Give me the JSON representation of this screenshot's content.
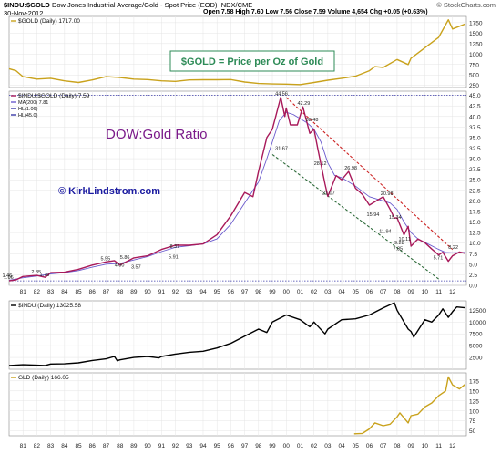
{
  "header": {
    "symbol": "$INDU:$GOLD",
    "description": "Dow Jones Industrial Average/Gold - Spot Price (EOD) INDX/CME",
    "watermark": "© StockCharts.com",
    "date": "30-Nov-2012",
    "ohlc": "Open 7.58  High 7.60  Low 7.56  Close 7.59  Volume 4,654  Chg +0.05 (+0.63%)"
  },
  "chart_data": [
    {
      "type": "line",
      "panel": "gold",
      "legend": "$GOLD (Daily) 1717.00",
      "annotation": "$GOLD = Price per Oz of Gold",
      "series": [
        {
          "name": "$GOLD (Daily) 1717.00",
          "color": "#c9a21c",
          "x": [
            1980.0,
            1980.5,
            1981.0,
            1982.0,
            1983.0,
            1984.0,
            1985.0,
            1986.0,
            1987.0,
            1988.0,
            1989.0,
            1990.0,
            1991.0,
            1992.0,
            1993.0,
            1994.0,
            1995.0,
            1996.0,
            1997.0,
            1998.0,
            1999.0,
            2000.0,
            2001.0,
            2002.0,
            2003.0,
            2004.0,
            2005.0,
            2006.0,
            2006.4,
            2007.0,
            2008.0,
            2008.8,
            2009.0,
            2010.0,
            2011.0,
            2011.7,
            2012.0,
            2012.9
          ],
          "y": [
            650,
            600,
            460,
            400,
            420,
            360,
            320,
            380,
            460,
            440,
            400,
            390,
            360,
            345,
            380,
            385,
            385,
            390,
            330,
            295,
            285,
            280,
            270,
            320,
            375,
            420,
            470,
            600,
            700,
            680,
            870,
            750,
            900,
            1150,
            1400,
            1820,
            1600,
            1717
          ]
        }
      ],
      "y_ticks": [
        250,
        500,
        750,
        1000,
        1250,
        1500,
        1750
      ],
      "ylim": [
        200,
        1900
      ]
    },
    {
      "type": "line",
      "panel": "ratio",
      "legend": [
        "$INDU:$GOLD (Daily) 7.59",
        "MA(200) 7.81",
        "HL(1.06)",
        "HL(45.0)"
      ],
      "title": "DOW:Gold Ratio",
      "credit": "© KirkLindstrom.com",
      "series": [
        {
          "name": "$INDU:$GOLD (Daily) 7.59",
          "color": "#a8195a",
          "x": [
            1980.0,
            1980.5,
            1981.0,
            1982.0,
            1982.6,
            1983.0,
            1984.0,
            1985.0,
            1986.0,
            1987.0,
            1987.6,
            1988.0,
            1989.0,
            1990.0,
            1991.0,
            1992.0,
            1993.0,
            1994.0,
            1995.0,
            1996.0,
            1997.0,
            1997.6,
            1998.0,
            1998.6,
            1999.0,
            1999.6,
            1999.9,
            2000.0,
            2000.3,
            2000.8,
            2001.2,
            2001.7,
            2002.0,
            2002.3,
            2002.8,
            2003.0,
            2003.6,
            2004.0,
            2004.5,
            2005.0,
            2005.5,
            2006.0,
            2006.5,
            2007.0,
            2007.5,
            2007.8,
            2008.0,
            2008.5,
            2008.8,
            2009.0,
            2009.5,
            2010.0,
            2010.5,
            2011.0,
            2011.3,
            2011.7,
            2012.0,
            2012.5,
            2012.9
          ],
          "y": [
            1.06,
            1.3,
            2.1,
            2.35,
            1.9,
            3.0,
            3.1,
            3.8,
            4.8,
            5.55,
            5.86,
            4.8,
            6.5,
            7.0,
            8.5,
            9.5,
            9.5,
            9.8,
            12.0,
            16.5,
            22.0,
            21.0,
            27.0,
            35.0,
            37.0,
            44.56,
            40.0,
            42.0,
            38.0,
            38.0,
            42.29,
            36.0,
            37.0,
            32.0,
            24.0,
            21.07,
            26.0,
            25.0,
            26.98,
            23.0,
            21.5,
            19.0,
            20.0,
            20.98,
            18.0,
            15.94,
            16.0,
            11.94,
            14.0,
            9.28,
            11.0,
            10.11,
            8.6,
            7.2,
            7.85,
            5.71,
            7.0,
            7.9,
            7.59
          ]
        },
        {
          "name": "MA(200) 7.81",
          "color": "#6a5acd",
          "x": [
            1980.0,
            1981.0,
            1982.0,
            1983.0,
            1984.0,
            1985.0,
            1986.0,
            1987.0,
            1988.0,
            1989.0,
            1990.0,
            1991.0,
            1992.0,
            1993.0,
            1994.0,
            1995.0,
            1996.0,
            1997.0,
            1998.0,
            1998.6,
            1999.0,
            1999.5,
            2000.0,
            2000.5,
            2001.0,
            2001.5,
            2002.0,
            2002.5,
            2003.0,
            2003.5,
            2004.0,
            2005.0,
            2006.0,
            2007.0,
            2007.5,
            2008.0,
            2008.5,
            2009.0,
            2009.5,
            2010.0,
            2011.0,
            2011.5,
            2012.0,
            2012.9
          ],
          "y": [
            1.2,
            1.8,
            2.2,
            2.7,
            3.0,
            3.5,
            4.3,
            5.0,
            5.2,
            6.0,
            6.8,
            8.0,
            9.0,
            9.4,
            9.8,
            11.0,
            14.5,
            19.5,
            24.5,
            30.0,
            34.0,
            39.0,
            41.0,
            40.5,
            39.5,
            38.5,
            37.0,
            34.0,
            29.0,
            26.0,
            25.5,
            23.5,
            21.0,
            20.0,
            19.5,
            18.0,
            15.0,
            12.5,
            11.0,
            10.2,
            8.5,
            7.8,
            7.7,
            7.81
          ]
        }
      ],
      "hlines": [
        1.06,
        45.0
      ],
      "point_labels": [
        {
          "text": "1.06",
          "x": 1980.0,
          "y": 1.06
        },
        {
          "text": "1.46",
          "x": 1979.9,
          "y": 1.46
        },
        {
          "text": "1.76",
          "x": 1982.6,
          "y": 1.76
        },
        {
          "text": "2.35",
          "x": 1982.0,
          "y": 2.35
        },
        {
          "text": "4.00",
          "x": 1988.0,
          "y": 4.0
        },
        {
          "text": "3.57",
          "x": 1989.2,
          "y": 3.57
        },
        {
          "text": "5.55",
          "x": 1987.0,
          "y": 5.55
        },
        {
          "text": "5.86",
          "x": 1988.4,
          "y": 5.86
        },
        {
          "text": "5.91",
          "x": 1991.9,
          "y": 5.91
        },
        {
          "text": "8.37",
          "x": 1992.0,
          "y": 8.37
        },
        {
          "text": "44.56",
          "x": 1999.6,
          "y": 44.56
        },
        {
          "text": "42.29",
          "x": 2001.2,
          "y": 42.29
        },
        {
          "text": "38.48",
          "x": 2001.8,
          "y": 38.48
        },
        {
          "text": "31.67",
          "x": 1999.6,
          "y": 31.67
        },
        {
          "text": "28.12",
          "x": 2002.4,
          "y": 28.12
        },
        {
          "text": "21.07",
          "x": 2003.0,
          "y": 21.07
        },
        {
          "text": "26.98",
          "x": 2004.6,
          "y": 26.98
        },
        {
          "text": "20.98",
          "x": 2007.2,
          "y": 20.98
        },
        {
          "text": "15.94",
          "x": 2006.2,
          "y": 15.94
        },
        {
          "text": "15.34",
          "x": 2007.8,
          "y": 15.34
        },
        {
          "text": "11.94",
          "x": 2007.1,
          "y": 11.94
        },
        {
          "text": "10.11",
          "x": 2008.5,
          "y": 10.11
        },
        {
          "text": "9.28",
          "x": 2008.2,
          "y": 9.28
        },
        {
          "text": "7.85",
          "x": 2008.1,
          "y": 7.85
        },
        {
          "text": "5.71",
          "x": 2011.0,
          "y": 5.71
        },
        {
          "text": "8.22",
          "x": 2012.1,
          "y": 8.22
        }
      ],
      "trendlines": [
        {
          "color": "#cc2222",
          "x": [
            2000.0,
            2012.0
          ],
          "y": [
            44.5,
            8.5
          ]
        },
        {
          "color": "#2e6b3a",
          "x": [
            1999.0,
            2011.0
          ],
          "y": [
            31.0,
            1.5
          ]
        }
      ],
      "y_ticks": [
        0.0,
        2.5,
        5.0,
        7.5,
        10.0,
        12.5,
        15.0,
        17.5,
        20.0,
        22.5,
        25.0,
        27.5,
        30.0,
        32.5,
        35.0,
        37.5,
        40.0,
        42.5,
        45.0
      ],
      "ylim": [
        0,
        46
      ]
    },
    {
      "type": "line",
      "panel": "indu",
      "legend": "$INDU (Daily) 13025.58",
      "series": [
        {
          "name": "$INDU (Daily) 13025.58",
          "color": "#000000",
          "x": [
            1980.0,
            1981.0,
            1982.0,
            1982.6,
            1983.0,
            1984.0,
            1985.0,
            1986.0,
            1987.0,
            1987.6,
            1987.8,
            1988.0,
            1989.0,
            1990.0,
            1990.8,
            1991.0,
            1992.0,
            1993.0,
            1994.0,
            1995.0,
            1996.0,
            1997.0,
            1998.0,
            1998.6,
            1999.0,
            2000.0,
            2001.0,
            2001.7,
            2002.0,
            2002.8,
            2003.0,
            2004.0,
            2005.0,
            2006.0,
            2007.0,
            2007.8,
            2008.0,
            2008.8,
            2009.0,
            2009.2,
            2010.0,
            2010.5,
            2011.0,
            2011.3,
            2011.7,
            2012.0,
            2012.3,
            2012.9
          ],
          "y": [
            800,
            950,
            850,
            800,
            1100,
            1150,
            1350,
            1850,
            2200,
            2700,
            1800,
            2000,
            2500,
            2700,
            2400,
            2700,
            3200,
            3600,
            3800,
            4500,
            5500,
            7000,
            8500,
            7800,
            10000,
            11500,
            10500,
            9000,
            10000,
            7500,
            8500,
            10500,
            10700,
            11500,
            13000,
            14100,
            12500,
            8500,
            8000,
            6800,
            10500,
            10000,
            11500,
            12800,
            11000,
            12200,
            13200,
            13025
          ]
        }
      ],
      "y_ticks": [
        2500,
        5000,
        7500,
        10000,
        12500
      ],
      "ylim": [
        0,
        14500
      ]
    },
    {
      "type": "line",
      "panel": "gld",
      "legend": "GLD (Daily) 166.05",
      "series": [
        {
          "name": "GLD (Daily) 166.05",
          "color": "#c9a21c",
          "x": [
            2004.9,
            2005.5,
            2006.0,
            2006.4,
            2007.0,
            2007.5,
            2008.0,
            2008.2,
            2008.8,
            2009.0,
            2009.5,
            2010.0,
            2010.5,
            2011.0,
            2011.5,
            2011.7,
            2012.0,
            2012.5,
            2012.9
          ],
          "y": [
            43,
            44,
            55,
            70,
            63,
            67,
            85,
            95,
            70,
            88,
            92,
            110,
            120,
            138,
            150,
            185,
            165,
            155,
            166
          ]
        }
      ],
      "y_ticks": [
        50,
        75,
        100,
        125,
        150,
        175
      ],
      "ylim": [
        38,
        195
      ]
    }
  ],
  "x_axis": {
    "labels": [
      "81",
      "82",
      "83",
      "84",
      "85",
      "86",
      "87",
      "88",
      "89",
      "90",
      "91",
      "92",
      "93",
      "94",
      "95",
      "96",
      "97",
      "98",
      "99",
      "00",
      "01",
      "02",
      "03",
      "04",
      "05",
      "06",
      "07",
      "08",
      "09",
      "10",
      "11",
      "12"
    ],
    "years": [
      1981,
      1982,
      1983,
      1984,
      1985,
      1986,
      1987,
      1988,
      1989,
      1990,
      1991,
      1992,
      1993,
      1994,
      1995,
      1996,
      1997,
      1998,
      1999,
      2000,
      2001,
      2002,
      2003,
      2004,
      2005,
      2006,
      2007,
      2008,
      2009,
      2010,
      2011,
      2012
    ],
    "xlim": [
      1980.0,
      2013.0
    ]
  },
  "colors": {
    "gold": "#c9a21c",
    "ratio": "#a8195a",
    "ma": "#6a5acd",
    "hl": "#3a3aa8",
    "title": "#7b1a8a",
    "credit": "#1a1aa0",
    "annotation": "#2e8b57",
    "downtrend_red": "#cc2222",
    "downtrend_green": "#2e6b3a",
    "grid": "#e4e4e4"
  }
}
